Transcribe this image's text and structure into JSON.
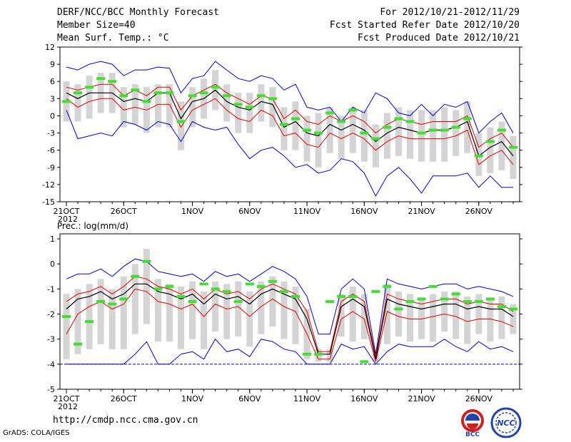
{
  "header": {
    "title": "DERF/NCC/BCC Monthly Forecast",
    "member_size": "Member Size=40",
    "variable": "Mean Surf. Temp.: °C",
    "period": "For 2012/10/21-2012/11/29",
    "start_date": "Fcst Started Refer Date 2012/10/20",
    "produced_date": "Fcst Produced Date 2012/10/21"
  },
  "footer": {
    "url": "http://cmdp.ncc.cma.gov.cn",
    "credit": "GrADS: COLA/IGES",
    "logo_left": "BCC",
    "logo_right": "NCC"
  },
  "colors": {
    "mean": "#000000",
    "spread": "#dd0000",
    "extreme": "#0000cc",
    "box": "#d4d4d4",
    "median": "#44dd33",
    "grid": "#aaaaaa"
  },
  "chart_data": [
    {
      "type": "line",
      "name": "temperature",
      "ylabel": "Mean Surf. Temp.: °C",
      "ylim": [
        -15,
        12
      ],
      "yticks": [
        12,
        9,
        6,
        3,
        0,
        -3,
        -6,
        -9,
        -12,
        -15
      ],
      "xticks": [
        {
          "day": 0,
          "label": "21OCT"
        },
        {
          "day": 5,
          "label": "26OCT"
        },
        {
          "day": 11,
          "label": "1NOV"
        },
        {
          "day": 16,
          "label": "6NOV"
        },
        {
          "day": 21,
          "label": "11NOV"
        },
        {
          "day": 26,
          "label": "16NOV"
        },
        {
          "day": 31,
          "label": "21NOV"
        },
        {
          "day": 36,
          "label": "26NOV"
        }
      ],
      "year_label": "2012",
      "x": [
        0,
        1,
        2,
        3,
        4,
        5,
        6,
        7,
        8,
        9,
        10,
        11,
        12,
        13,
        14,
        15,
        16,
        17,
        18,
        19,
        20,
        21,
        22,
        23,
        24,
        25,
        26,
        27,
        28,
        29,
        30,
        31,
        32,
        33,
        34,
        35,
        36,
        37,
        38,
        39
      ],
      "series": [
        {
          "name": "max",
          "values": [
            8.5,
            8,
            9,
            9.5,
            9,
            7,
            8,
            8,
            8.5,
            8.3,
            4,
            6.5,
            7,
            9.5,
            8,
            6.5,
            6,
            7,
            6.5,
            4.5,
            5.5,
            1.5,
            1,
            1.5,
            -1,
            1.5,
            0.5,
            4,
            3,
            0.5,
            0,
            2,
            0,
            2,
            1.5,
            2.5,
            -3,
            -1,
            0.5,
            -3
          ]
        },
        {
          "name": "upper",
          "values": [
            5,
            4.5,
            5,
            5.5,
            5.5,
            3.5,
            4.5,
            3.5,
            5,
            5,
            1,
            3.5,
            4.5,
            5.5,
            4,
            3,
            2,
            3.5,
            3,
            -0.5,
            1,
            -1,
            -1.5,
            0,
            -1,
            0,
            -1,
            -3,
            -1.5,
            -0.5,
            -1,
            -1.5,
            -1,
            -1,
            -1,
            0,
            -5.5,
            -4,
            -3,
            -5.5
          ]
        },
        {
          "name": "mean",
          "values": [
            4,
            3,
            4,
            4,
            4,
            2.5,
            3,
            2.5,
            4,
            4,
            -0.5,
            2.5,
            3,
            4.5,
            2.5,
            1.5,
            1,
            2.5,
            2,
            -2,
            -1,
            -3,
            -3.5,
            -1.5,
            -2.5,
            -1.5,
            -2.5,
            -4.5,
            -3,
            -2,
            -2.5,
            -3,
            -2.5,
            -2.5,
            -2,
            -1,
            -7,
            -5.5,
            -4.5,
            -7
          ]
        },
        {
          "name": "lower",
          "values": [
            3,
            1.5,
            2.5,
            3,
            3,
            1,
            1.5,
            1,
            2,
            2,
            -2,
            1,
            2,
            3,
            1,
            -0.5,
            -1,
            1,
            0,
            -3.5,
            -3,
            -5,
            -5.5,
            -3,
            -4,
            -3,
            -4,
            -6,
            -4.5,
            -3.5,
            -4,
            -4,
            -4,
            -4,
            -3.5,
            -2.5,
            -8.5,
            -7,
            -6,
            -8.5
          ]
        },
        {
          "name": "min",
          "values": [
            1,
            -4,
            -3.5,
            -3,
            -3.5,
            -1,
            -1.5,
            -2.5,
            -1,
            -1.5,
            -4.5,
            -1,
            -2,
            -2.5,
            -2,
            -5,
            -7.5,
            -6,
            -5.5,
            -7,
            -9,
            -8.5,
            -10,
            -9.5,
            -7.5,
            -8,
            -10,
            -14,
            -10.5,
            -9,
            -11,
            -13.5,
            -10.5,
            -10.5,
            -10.5,
            -10,
            -12.5,
            -10.5,
            -12.5,
            -12.5
          ]
        },
        {
          "name": "box_high",
          "values": [
            6,
            5.5,
            7,
            7.5,
            7.5,
            5,
            5.5,
            5,
            5.5,
            5.5,
            2.5,
            5,
            6.5,
            8,
            5.5,
            4,
            4,
            5.5,
            5,
            1.5,
            2.5,
            0,
            0.5,
            1.5,
            0,
            1.5,
            1,
            -1.5,
            0.5,
            1.5,
            1,
            1,
            1,
            1.5,
            1,
            2.5,
            -3,
            -2,
            -1,
            -3.5
          ]
        },
        {
          "name": "box_low",
          "values": [
            -1,
            -1,
            -0.5,
            0.5,
            0.5,
            -2,
            -1.5,
            -3,
            -2,
            -2,
            -6,
            -2,
            -0.5,
            1,
            -1,
            -3,
            -3,
            -1,
            -2,
            -6,
            -6,
            -8,
            -9,
            -6.5,
            -7.5,
            -6.5,
            -8,
            -9,
            -7.5,
            -7,
            -7.5,
            -8,
            -8,
            -8,
            -7,
            -6.5,
            -10.5,
            -10,
            -9.5,
            -11
          ]
        },
        {
          "name": "median",
          "values": [
            2.5,
            4,
            5,
            6.5,
            6,
            3.5,
            4.5,
            2.5,
            4,
            4,
            -1,
            3.5,
            4,
            5,
            3.5,
            2,
            1.5,
            3.5,
            3,
            -1.5,
            -0.5,
            -2.5,
            -3,
            0.5,
            -1,
            1,
            -3,
            -4,
            -2,
            -0.5,
            -1,
            -3,
            -2.5,
            -2.5,
            -2,
            -0.5,
            -7,
            -4.5,
            -2.5,
            -5.5
          ]
        }
      ]
    },
    {
      "type": "line",
      "name": "precipitation",
      "ylabel": "Prec.: log(mm/d)",
      "ylim": [
        -5,
        1.2
      ],
      "yticks": [
        1,
        0,
        -1,
        -2,
        -3,
        -4,
        -5
      ],
      "xticks": [
        {
          "day": 0,
          "label": "21OCT"
        },
        {
          "day": 5,
          "label": "26OCT"
        },
        {
          "day": 11,
          "label": "1NOV"
        },
        {
          "day": 16,
          "label": "6NOV"
        },
        {
          "day": 21,
          "label": "11NOV"
        },
        {
          "day": 26,
          "label": "16NOV"
        },
        {
          "day": 31,
          "label": "21NOV"
        },
        {
          "day": 36,
          "label": "26NOV"
        }
      ],
      "year_label": "2012",
      "x": [
        0,
        1,
        2,
        3,
        4,
        5,
        6,
        7,
        8,
        9,
        10,
        11,
        12,
        13,
        14,
        15,
        16,
        17,
        18,
        19,
        20,
        21,
        22,
        23,
        24,
        25,
        26,
        27,
        28,
        29,
        30,
        31,
        32,
        33,
        34,
        35,
        36,
        37,
        38,
        39
      ],
      "series": [
        {
          "name": "max",
          "values": [
            -0.6,
            -0.4,
            -0.4,
            -0.2,
            -0.5,
            -0.1,
            0.2,
            0.1,
            -0.3,
            -0.4,
            -0.5,
            -0.4,
            -0.7,
            -0.3,
            -0.5,
            -0.4,
            -0.7,
            -0.4,
            -0.1,
            -0.3,
            -0.6,
            -1.3,
            -2.8,
            -2.8,
            -1.0,
            -0.6,
            -1.0,
            -3.6,
            -0.6,
            -0.8,
            -0.9,
            -1.0,
            -0.9,
            -0.8,
            -0.8,
            -1.0,
            -0.9,
            -1.0,
            -1.1,
            -1.3
          ]
        },
        {
          "name": "upper",
          "values": [
            -1.5,
            -1.2,
            -1.1,
            -0.9,
            -1.2,
            -0.9,
            -0.5,
            -0.6,
            -0.9,
            -1.0,
            -1.2,
            -1.0,
            -1.4,
            -1.0,
            -1.2,
            -1.1,
            -1.4,
            -1.0,
            -0.8,
            -1.0,
            -1.2,
            -1.9,
            -3.5,
            -3.5,
            -1.5,
            -1.2,
            -1.5,
            -3.7,
            -1.2,
            -1.4,
            -1.5,
            -1.6,
            -1.5,
            -1.4,
            -1.4,
            -1.6,
            -1.5,
            -1.6,
            -1.6,
            -1.9
          ]
        },
        {
          "name": "mean",
          "values": [
            -1.8,
            -1.4,
            -1.3,
            -1.1,
            -1.4,
            -1.2,
            -0.8,
            -0.8,
            -1.1,
            -1.2,
            -1.4,
            -1.2,
            -1.6,
            -1.2,
            -1.4,
            -1.3,
            -1.6,
            -1.2,
            -1.0,
            -1.2,
            -1.4,
            -2.2,
            -3.6,
            -3.6,
            -1.7,
            -1.4,
            -1.7,
            -3.8,
            -1.4,
            -1.6,
            -1.7,
            -1.8,
            -1.7,
            -1.6,
            -1.6,
            -1.8,
            -1.7,
            -1.8,
            -1.8,
            -2.1
          ]
        },
        {
          "name": "lower",
          "values": [
            -2.8,
            -2.0,
            -1.7,
            -1.5,
            -1.8,
            -1.6,
            -1.0,
            -1.1,
            -1.5,
            -1.6,
            -1.8,
            -1.6,
            -2.1,
            -1.6,
            -1.8,
            -1.7,
            -2.1,
            -1.7,
            -1.4,
            -1.7,
            -1.9,
            -2.8,
            -3.8,
            -3.8,
            -2.2,
            -1.9,
            -2.2,
            -3.9,
            -1.9,
            -2.1,
            -2.2,
            -2.2,
            -2.1,
            -2.0,
            -2.1,
            -2.3,
            -2.2,
            -2.2,
            -2.3,
            -2.5
          ]
        },
        {
          "name": "min",
          "values": [
            -4,
            -4,
            -4,
            -4,
            -4,
            -4,
            -3.6,
            -3.1,
            -4,
            -4,
            -3.6,
            -3.5,
            -3.8,
            -3.0,
            -3.5,
            -3.4,
            -3.7,
            -3.0,
            -3.1,
            -3.4,
            -3.5,
            -4,
            -4,
            -4,
            -3.2,
            -3.4,
            -3.3,
            -4,
            -3.5,
            -3.2,
            -3.3,
            -3.3,
            -3.3,
            -3.0,
            -3.3,
            -3.5,
            -3.1,
            -3.4,
            -3.3,
            -3.5
          ]
        },
        {
          "name": "box_high",
          "values": [
            -1.2,
            -1.0,
            -0.8,
            -0.6,
            -1.0,
            -0.5,
            0.0,
            0.6,
            -0.6,
            -0.8,
            -0.9,
            -0.7,
            -1.1,
            -0.7,
            -0.8,
            -0.7,
            -1.1,
            -0.7,
            -0.5,
            -0.7,
            -0.9,
            -1.8,
            -3.4,
            -3.4,
            -1.2,
            -0.9,
            -1.2,
            -3.6,
            -0.8,
            -1.1,
            -1.2,
            -1.4,
            -1.2,
            -1.1,
            -1.1,
            -1.3,
            -1.2,
            -1.4,
            -1.3,
            -1.6
          ]
        },
        {
          "name": "box_low",
          "values": [
            -3.8,
            -3.6,
            -3.4,
            -3.2,
            -3.4,
            -3.4,
            -2.8,
            -2.4,
            -3.1,
            -3.1,
            -3.4,
            -3.0,
            -3.4,
            -2.7,
            -3.0,
            -2.9,
            -3.3,
            -2.8,
            -2.5,
            -3.0,
            -3.2,
            -3.8,
            -3.9,
            -3.9,
            -2.9,
            -3.1,
            -3.0,
            -3.9,
            -3.2,
            -2.9,
            -3.1,
            -3.0,
            -3.1,
            -2.7,
            -3.0,
            -3.2,
            -2.8,
            -3.1,
            -3.0,
            -2.8
          ]
        },
        {
          "name": "median",
          "values": [
            -2.1,
            -3.2,
            -2.3,
            -1.5,
            -1.6,
            -1.4,
            -0.5,
            0.1,
            -1.0,
            -0.9,
            -1.3,
            -1.5,
            -0.8,
            -1.0,
            -1.1,
            -1.5,
            -0.8,
            -0.9,
            -0.7,
            -1.1,
            -1.3,
            -3.6,
            -3.6,
            -1.5,
            -1.3,
            -1.3,
            -3.9,
            -1.1,
            -0.9,
            -1.8,
            -1.5,
            -1.4,
            -0.9,
            -1.4,
            -1.2,
            -1.5,
            -1.5,
            -1.4,
            -1.7,
            -1.8
          ]
        }
      ]
    }
  ]
}
